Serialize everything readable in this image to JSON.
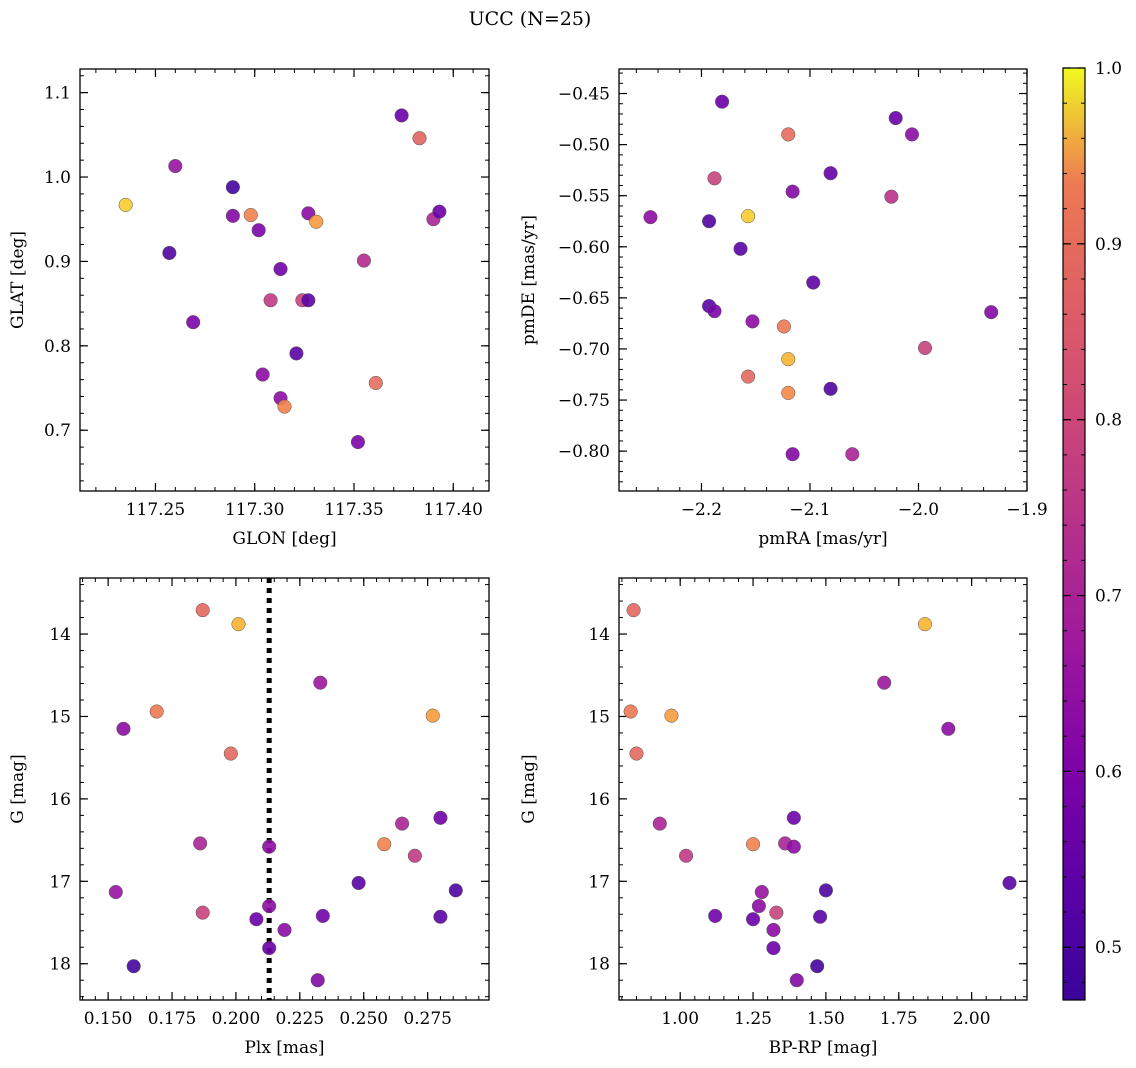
{
  "title": "UCC (N=25)",
  "colormap": {
    "name": "plasma",
    "min": 0.47,
    "max": 1.0,
    "ticks": [
      0.5,
      0.6,
      0.7,
      0.8,
      0.9,
      1.0
    ]
  },
  "chart_data": [
    {
      "type": "scatter",
      "xlabel": "GLON [deg]",
      "ylabel": "GLAT [deg]",
      "xlim": [
        117.212,
        117.418
      ],
      "ylim": [
        0.628,
        1.128
      ],
      "xticks": [
        117.25,
        117.3,
        117.35,
        117.4
      ],
      "yticks": [
        0.7,
        0.8,
        0.9,
        1.0,
        1.1
      ],
      "points": [
        {
          "x": 117.235,
          "y": 0.967,
          "c": 0.98
        },
        {
          "x": 117.26,
          "y": 1.013,
          "c": 0.64
        },
        {
          "x": 117.257,
          "y": 0.91,
          "c": 0.5
        },
        {
          "x": 117.269,
          "y": 0.828,
          "c": 0.58
        },
        {
          "x": 117.289,
          "y": 0.988,
          "c": 0.48
        },
        {
          "x": 117.289,
          "y": 0.954,
          "c": 0.6
        },
        {
          "x": 117.298,
          "y": 0.955,
          "c": 0.92
        },
        {
          "x": 117.302,
          "y": 0.937,
          "c": 0.58
        },
        {
          "x": 117.304,
          "y": 0.766,
          "c": 0.62
        },
        {
          "x": 117.308,
          "y": 0.854,
          "c": 0.74
        },
        {
          "x": 117.313,
          "y": 0.891,
          "c": 0.56
        },
        {
          "x": 117.313,
          "y": 0.738,
          "c": 0.62
        },
        {
          "x": 117.315,
          "y": 0.728,
          "c": 0.92
        },
        {
          "x": 117.321,
          "y": 0.791,
          "c": 0.52
        },
        {
          "x": 117.324,
          "y": 0.854,
          "c": 0.76
        },
        {
          "x": 117.327,
          "y": 0.854,
          "c": 0.52
        },
        {
          "x": 117.327,
          "y": 0.957,
          "c": 0.62
        },
        {
          "x": 117.331,
          "y": 0.947,
          "c": 0.95
        },
        {
          "x": 117.352,
          "y": 0.686,
          "c": 0.58
        },
        {
          "x": 117.355,
          "y": 0.901,
          "c": 0.7
        },
        {
          "x": 117.361,
          "y": 0.756,
          "c": 0.87
        },
        {
          "x": 117.374,
          "y": 1.073,
          "c": 0.55
        },
        {
          "x": 117.383,
          "y": 1.046,
          "c": 0.85
        },
        {
          "x": 117.39,
          "y": 0.95,
          "c": 0.68
        },
        {
          "x": 117.393,
          "y": 0.959,
          "c": 0.55
        }
      ]
    },
    {
      "type": "scatter",
      "xlabel": "pmRA [mas/yr]",
      "ylabel": "pmDE [mas/yr]",
      "xlim": [
        -2.276,
        -1.9
      ],
      "ylim": [
        -0.839,
        -0.426
      ],
      "xticks": [
        -2.2,
        -2.1,
        -2.0,
        -1.9
      ],
      "yticks": [
        -0.45,
        -0.5,
        -0.55,
        -0.6,
        -0.65,
        -0.7,
        -0.75,
        -0.8
      ],
      "points": [
        {
          "x": -2.247,
          "y": -0.571,
          "c": 0.62
        },
        {
          "x": -2.181,
          "y": -0.458,
          "c": 0.55
        },
        {
          "x": -2.188,
          "y": -0.533,
          "c": 0.76
        },
        {
          "x": -2.193,
          "y": -0.575,
          "c": 0.5
        },
        {
          "x": -2.164,
          "y": -0.602,
          "c": 0.52
        },
        {
          "x": -2.157,
          "y": -0.57,
          "c": 0.98
        },
        {
          "x": -2.12,
          "y": -0.49,
          "c": 0.87
        },
        {
          "x": -2.116,
          "y": -0.546,
          "c": 0.6
        },
        {
          "x": -2.081,
          "y": -0.528,
          "c": 0.54
        },
        {
          "x": -2.021,
          "y": -0.474,
          "c": 0.55
        },
        {
          "x": -2.006,
          "y": -0.49,
          "c": 0.62
        },
        {
          "x": -2.025,
          "y": -0.551,
          "c": 0.72
        },
        {
          "x": -2.193,
          "y": -0.658,
          "c": 0.52
        },
        {
          "x": -2.188,
          "y": -0.663,
          "c": 0.58
        },
        {
          "x": -2.153,
          "y": -0.673,
          "c": 0.62
        },
        {
          "x": -2.124,
          "y": -0.678,
          "c": 0.9
        },
        {
          "x": -2.12,
          "y": -0.71,
          "c": 0.97
        },
        {
          "x": -2.157,
          "y": -0.727,
          "c": 0.86
        },
        {
          "x": -2.12,
          "y": -0.743,
          "c": 0.93
        },
        {
          "x": -2.097,
          "y": -0.635,
          "c": 0.53
        },
        {
          "x": -2.081,
          "y": -0.739,
          "c": 0.5
        },
        {
          "x": -2.116,
          "y": -0.803,
          "c": 0.6
        },
        {
          "x": -2.061,
          "y": -0.803,
          "c": 0.68
        },
        {
          "x": -1.994,
          "y": -0.699,
          "c": 0.76
        },
        {
          "x": -1.933,
          "y": -0.664,
          "c": 0.6
        }
      ]
    },
    {
      "type": "scatter",
      "xlabel": "Plx [mas]",
      "ylabel": "G [mag]",
      "xlim": [
        0.139,
        0.299
      ],
      "ylim": [
        18.44,
        13.32
      ],
      "y_inverted": true,
      "xticks": [
        0.15,
        0.175,
        0.2,
        0.225,
        0.25,
        0.275
      ],
      "yticks": [
        14,
        15,
        16,
        17,
        18
      ],
      "vline": {
        "x": 0.213,
        "style": "dotted"
      },
      "points": [
        {
          "x": 0.187,
          "y": 13.71,
          "c": 0.86
        },
        {
          "x": 0.201,
          "y": 13.88,
          "c": 0.97
        },
        {
          "x": 0.169,
          "y": 14.94,
          "c": 0.9
        },
        {
          "x": 0.156,
          "y": 15.15,
          "c": 0.62
        },
        {
          "x": 0.198,
          "y": 15.45,
          "c": 0.86
        },
        {
          "x": 0.233,
          "y": 14.59,
          "c": 0.65
        },
        {
          "x": 0.277,
          "y": 14.99,
          "c": 0.95
        },
        {
          "x": 0.186,
          "y": 16.54,
          "c": 0.68
        },
        {
          "x": 0.213,
          "y": 16.58,
          "c": 0.62
        },
        {
          "x": 0.258,
          "y": 16.55,
          "c": 0.92
        },
        {
          "x": 0.265,
          "y": 16.3,
          "c": 0.68
        },
        {
          "x": 0.28,
          "y": 16.23,
          "c": 0.56
        },
        {
          "x": 0.27,
          "y": 16.69,
          "c": 0.74
        },
        {
          "x": 0.153,
          "y": 17.13,
          "c": 0.64
        },
        {
          "x": 0.187,
          "y": 17.38,
          "c": 0.76
        },
        {
          "x": 0.208,
          "y": 17.46,
          "c": 0.55
        },
        {
          "x": 0.213,
          "y": 17.3,
          "c": 0.62
        },
        {
          "x": 0.219,
          "y": 17.59,
          "c": 0.62
        },
        {
          "x": 0.234,
          "y": 17.42,
          "c": 0.56
        },
        {
          "x": 0.248,
          "y": 17.02,
          "c": 0.52
        },
        {
          "x": 0.286,
          "y": 17.11,
          "c": 0.5
        },
        {
          "x": 0.28,
          "y": 17.43,
          "c": 0.52
        },
        {
          "x": 0.213,
          "y": 17.81,
          "c": 0.55
        },
        {
          "x": 0.16,
          "y": 18.03,
          "c": 0.48
        },
        {
          "x": 0.232,
          "y": 18.2,
          "c": 0.6
        }
      ]
    },
    {
      "type": "scatter",
      "xlabel": "BP-RP [mag]",
      "ylabel": "G [mag]",
      "xlim": [
        0.79,
        2.19
      ],
      "ylim": [
        18.44,
        13.32
      ],
      "y_inverted": true,
      "xticks": [
        1.0,
        1.25,
        1.5,
        1.75,
        2.0
      ],
      "yticks": [
        14,
        15,
        16,
        17,
        18
      ],
      "points": [
        {
          "x": 0.84,
          "y": 13.71,
          "c": 0.86
        },
        {
          "x": 1.84,
          "y": 13.88,
          "c": 0.97
        },
        {
          "x": 0.83,
          "y": 14.94,
          "c": 0.9
        },
        {
          "x": 0.97,
          "y": 14.99,
          "c": 0.95
        },
        {
          "x": 0.85,
          "y": 15.45,
          "c": 0.86
        },
        {
          "x": 1.7,
          "y": 14.59,
          "c": 0.65
        },
        {
          "x": 1.92,
          "y": 15.15,
          "c": 0.62
        },
        {
          "x": 0.93,
          "y": 16.3,
          "c": 0.68
        },
        {
          "x": 1.02,
          "y": 16.69,
          "c": 0.74
        },
        {
          "x": 1.25,
          "y": 16.55,
          "c": 0.92
        },
        {
          "x": 1.36,
          "y": 16.54,
          "c": 0.68
        },
        {
          "x": 1.39,
          "y": 16.58,
          "c": 0.62
        },
        {
          "x": 1.39,
          "y": 16.23,
          "c": 0.56
        },
        {
          "x": 2.13,
          "y": 17.02,
          "c": 0.52
        },
        {
          "x": 1.5,
          "y": 17.11,
          "c": 0.5
        },
        {
          "x": 1.28,
          "y": 17.13,
          "c": 0.64
        },
        {
          "x": 1.27,
          "y": 17.3,
          "c": 0.62
        },
        {
          "x": 1.33,
          "y": 17.38,
          "c": 0.76
        },
        {
          "x": 1.12,
          "y": 17.42,
          "c": 0.56
        },
        {
          "x": 1.25,
          "y": 17.46,
          "c": 0.55
        },
        {
          "x": 1.48,
          "y": 17.43,
          "c": 0.52
        },
        {
          "x": 1.32,
          "y": 17.59,
          "c": 0.62
        },
        {
          "x": 1.32,
          "y": 17.81,
          "c": 0.55
        },
        {
          "x": 1.47,
          "y": 18.03,
          "c": 0.48
        },
        {
          "x": 1.4,
          "y": 18.2,
          "c": 0.6
        }
      ]
    }
  ]
}
